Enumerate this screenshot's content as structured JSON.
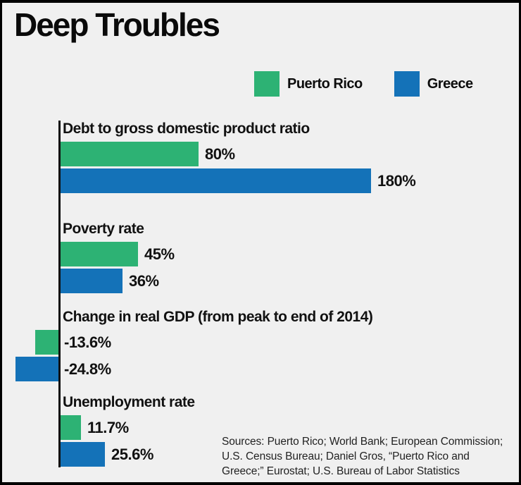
{
  "title": "Deep Troubles",
  "legend": [
    {
      "label": "Puerto Rico",
      "color": "#2db274"
    },
    {
      "label": "Greece",
      "color": "#1472b8"
    }
  ],
  "chart_data": {
    "type": "bar",
    "orientation": "horizontal",
    "title": "Deep Troubles",
    "unit": "%",
    "grid": false,
    "legend_position": "top-right",
    "categories": [
      "Debt to gross domestic product ratio",
      "Poverty rate",
      "Change in real GDP (from peak to end of 2014)",
      "Unemployment rate"
    ],
    "series": [
      {
        "name": "Puerto Rico",
        "color": "#2db274",
        "values": [
          80,
          45,
          -13.6,
          11.7
        ]
      },
      {
        "name": "Greece",
        "color": "#1472b8",
        "values": [
          180,
          36,
          -24.8,
          25.6
        ]
      }
    ],
    "value_labels": [
      [
        "80%",
        "180%"
      ],
      [
        "45%",
        "36%"
      ],
      [
        "-13.6%",
        "-24.8%"
      ],
      [
        "11.7%",
        "25.6%"
      ]
    ]
  },
  "sources": {
    "lines": [
      "Sources: Puerto Rico; World Bank; European Commission;",
      "U.S. Census Bureau; Daniel Gros, “Puerto Rico and",
      "Greece;” Eurostat; U.S. Bureau of Labor Statistics"
    ]
  }
}
